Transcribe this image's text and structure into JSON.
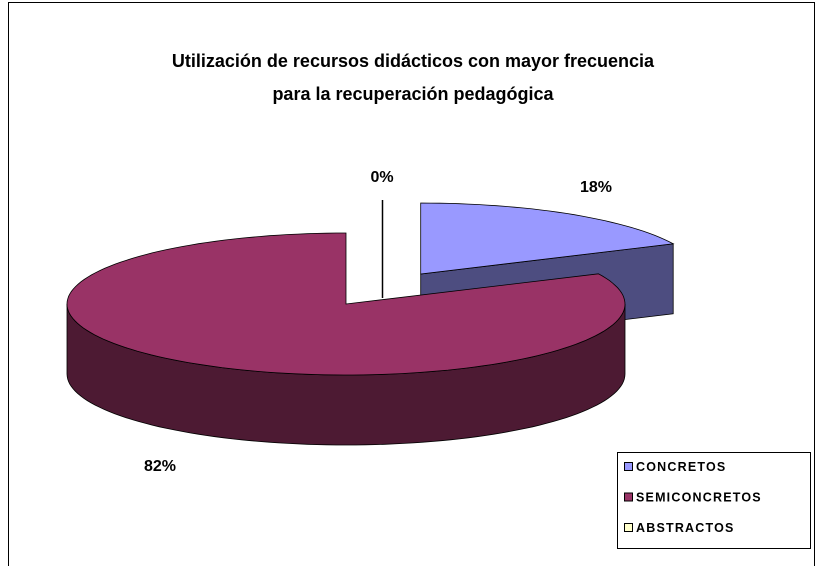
{
  "chart_data": {
    "type": "pie",
    "title": [
      "Utilización de recursos didácticos  con mayor frecuencia",
      "para la recuperación pedagógica"
    ],
    "categories": [
      "CONCRETOS",
      "SEMICONCRETOS",
      "ABSTRACTOS"
    ],
    "values": [
      18,
      82,
      0
    ],
    "value_labels": [
      "18%",
      "82%",
      "0%"
    ],
    "colors": [
      "#9999ff",
      "#993366",
      "#ffffcc"
    ],
    "legend": "lower right"
  }
}
